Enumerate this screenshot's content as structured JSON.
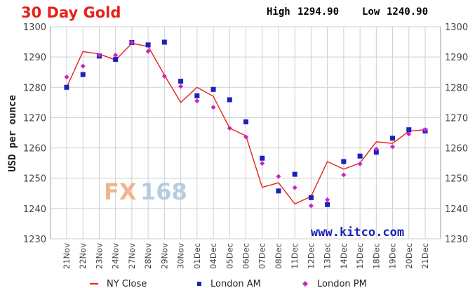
{
  "chart_data": {
    "type": "line",
    "title": "30 Day Gold",
    "high_label": "High",
    "high_value": "1294.90",
    "low_label": "Low",
    "low_value": "1240.90",
    "ylabel": "USD per ounce",
    "ylim": [
      1230,
      1300
    ],
    "yticks": [
      "1230",
      "1240",
      "1250",
      "1260",
      "1270",
      "1280",
      "1290",
      "1300"
    ],
    "grid": true,
    "categories": [
      "21Nov",
      "22Nov",
      "23Nov",
      "24Nov",
      "27Nov",
      "28Nov",
      "29Nov",
      "30Nov",
      "01Dec",
      "04Dec",
      "05Dec",
      "06Dec",
      "07Dec",
      "08Dec",
      "11Dec",
      "12Dec",
      "13Dec",
      "14Dec",
      "15Dec",
      "18Dec",
      "19Dec",
      "20Dec",
      "21Dec"
    ],
    "series": [
      {
        "name": "NY Close",
        "kind": "line",
        "color": "#e8201a",
        "values": [
          1280,
          1291.8,
          1291,
          1289,
          1294.5,
          1293.5,
          1284,
          1275,
          1280,
          1277,
          1266.5,
          1264,
          1247,
          1248.5,
          1241.5,
          1244,
          1255.5,
          1253,
          1255,
          1262,
          1261.5,
          1265.5,
          1266
        ]
      },
      {
        "name": "London AM",
        "kind": "square",
        "color": "#1a22b8",
        "values": [
          1280,
          1284.2,
          1290.3,
          1289.2,
          1294.8,
          1294,
          1294.9,
          1282,
          1277.2,
          1279.3,
          1275.9,
          1268.6,
          1256.6,
          1245.8,
          1251.3,
          1243.6,
          1241.3,
          1255.5,
          1257.3,
          1258.6,
          1263.2,
          1266,
          1265.6
        ]
      },
      {
        "name": "London PM",
        "kind": "diamond",
        "color": "#cc22cc",
        "values": [
          1283.4,
          1287,
          1290.6,
          1290.6,
          1294.8,
          1291.9,
          1283.7,
          1280.3,
          1275.5,
          1273.4,
          1266.5,
          1263.6,
          1254.9,
          1250.6,
          1246.9,
          1240.9,
          1242.9,
          1251.1,
          1254.7,
          1259.6,
          1260.4,
          1264.6,
          1266
        ]
      }
    ],
    "legend": {
      "placement": "bottom"
    }
  },
  "watermark": {
    "part1": "FX",
    "part2": "168"
  },
  "site_label": "www.kitco.com"
}
